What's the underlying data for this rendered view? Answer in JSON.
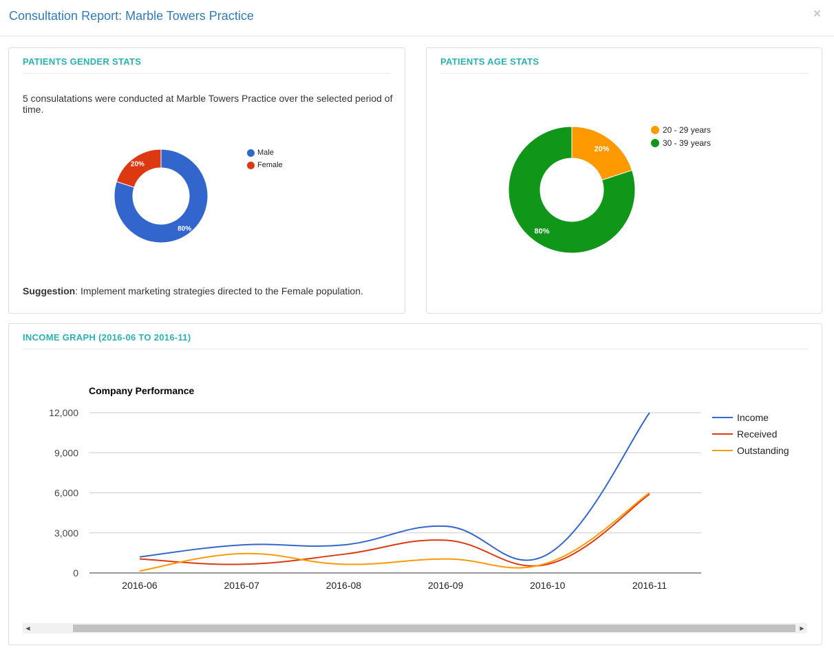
{
  "header": {
    "title": "Consultation Report: Marble Towers Practice",
    "close_label": "×"
  },
  "gender_panel": {
    "title": "PATIENTS GENDER STATS",
    "summary": "5 consulatations were conducted at Marble Towers Practice over the selected period of time.",
    "suggestion_label": "Suggestion",
    "suggestion_text": ": Implement marketing strategies directed to the Female population."
  },
  "age_panel": {
    "title": "PATIENTS AGE STATS"
  },
  "income_panel": {
    "title": "INCOME GRAPH (2016-06 TO 2016-11)"
  },
  "chart_data": [
    {
      "type": "pie",
      "donut": true,
      "labels": [
        "Male",
        "Female"
      ],
      "values": [
        80,
        20
      ],
      "slice_labels": [
        "80%",
        "20%"
      ],
      "colors": [
        "#3366cc",
        "#dc3912"
      ],
      "legend": "right"
    },
    {
      "type": "pie",
      "donut": true,
      "labels": [
        "20 - 29 years",
        "30 - 39 years"
      ],
      "values": [
        20,
        80
      ],
      "slice_labels": [
        "20%",
        "80%"
      ],
      "colors": [
        "#ff9900",
        "#109618"
      ],
      "legend": "right"
    },
    {
      "type": "line",
      "title": "Company Performance",
      "x": [
        "2016-06",
        "2016-07",
        "2016-08",
        "2016-09",
        "2016-10",
        "2016-11"
      ],
      "series": [
        {
          "name": "Income",
          "color": "#3366cc",
          "values": [
            1200,
            2100,
            2100,
            3500,
            1400,
            12000
          ]
        },
        {
          "name": "Received",
          "color": "#dc3912",
          "values": [
            1050,
            650,
            1400,
            2450,
            650,
            5900
          ]
        },
        {
          "name": "Outstanding",
          "color": "#ff9900",
          "values": [
            150,
            1450,
            650,
            1050,
            750,
            6000
          ]
        }
      ],
      "ylim": [
        0,
        12000
      ],
      "yticks": [
        0,
        3000,
        6000,
        9000,
        12000
      ],
      "ytick_labels": [
        "0",
        "3,000",
        "6,000",
        "9,000",
        "12,000"
      ],
      "grid": true,
      "legend": "right"
    }
  ]
}
